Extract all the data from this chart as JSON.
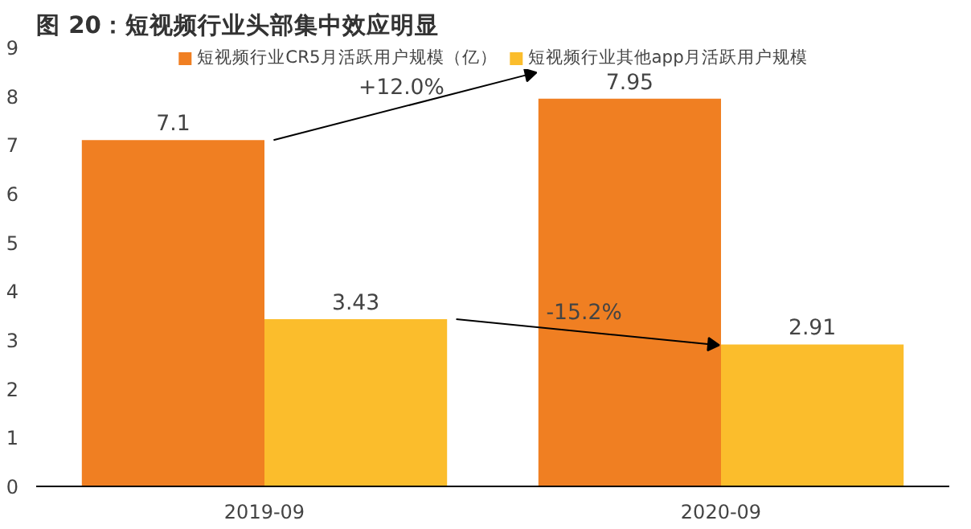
{
  "chart_data": {
    "type": "bar",
    "title": "图 20：短视频行业头部集中效应明显",
    "categories": [
      "2019-09",
      "2020-09"
    ],
    "series": [
      {
        "name": "短视频行业CR5月活跃用户规模（亿）",
        "color": "#f07f22",
        "values": [
          7.1,
          7.95
        ]
      },
      {
        "name": "短视频行业其他app月活跃用户规模",
        "color": "#fbbd2c",
        "values": [
          3.43,
          2.91
        ]
      }
    ],
    "ylim": [
      0,
      9
    ],
    "yticks": [
      0,
      1,
      2,
      3,
      4,
      5,
      6,
      7,
      8,
      9
    ],
    "grid": false,
    "legend": "top",
    "data_labels": true,
    "annotations": [
      "+12.0%",
      "-15.2%"
    ]
  }
}
